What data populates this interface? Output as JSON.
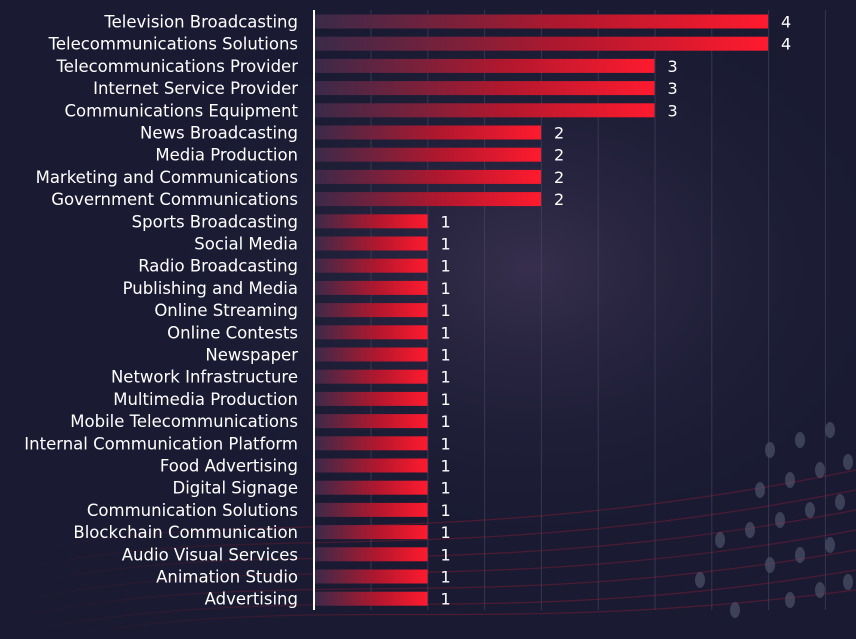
{
  "chart_data": {
    "type": "bar",
    "orientation": "horizontal",
    "categories": [
      "Television Broadcasting",
      "Telecommunications Solutions",
      "Telecommunications Provider",
      "Internet Service Provider",
      "Communications Equipment",
      "News Broadcasting",
      "Media Production",
      "Marketing and Communications",
      "Government Communications",
      "Sports Broadcasting",
      "Social Media",
      "Radio Broadcasting",
      "Publishing and Media",
      "Online Streaming",
      "Online Contests",
      "Newspaper",
      "Network Infrastructure",
      "Multimedia Production",
      "Mobile Telecommunications",
      "Internal Communication Platform",
      "Food Advertising",
      "Digital Signage",
      "Communication Solutions",
      "Blockchain Communication",
      "Audio Visual Services",
      "Animation Studio",
      "Advertising"
    ],
    "values": [
      4,
      4,
      3,
      3,
      3,
      2,
      2,
      2,
      2,
      1,
      1,
      1,
      1,
      1,
      1,
      1,
      1,
      1,
      1,
      1,
      1,
      1,
      1,
      1,
      1,
      1,
      1
    ],
    "data_labels": [
      "4",
      "4",
      "3",
      "3",
      "3",
      "2",
      "2",
      "2",
      "2",
      "1",
      "1",
      "1",
      "1",
      "1",
      "1",
      "1",
      "1",
      "1",
      "1",
      "1",
      "1",
      "1",
      "1",
      "1",
      "1",
      "1",
      "1"
    ],
    "title": "",
    "xlabel": "",
    "ylabel": "",
    "xlim": [
      0,
      4.6
    ],
    "grid": "vertical",
    "legend": "none",
    "colors": {
      "background": "#1a1b33",
      "bar_start": "#3a2a4a",
      "bar_end": "#ff1a2e",
      "text": "#ffffff",
      "gridline": "#4a4d66",
      "axis": "#ffffff"
    }
  }
}
